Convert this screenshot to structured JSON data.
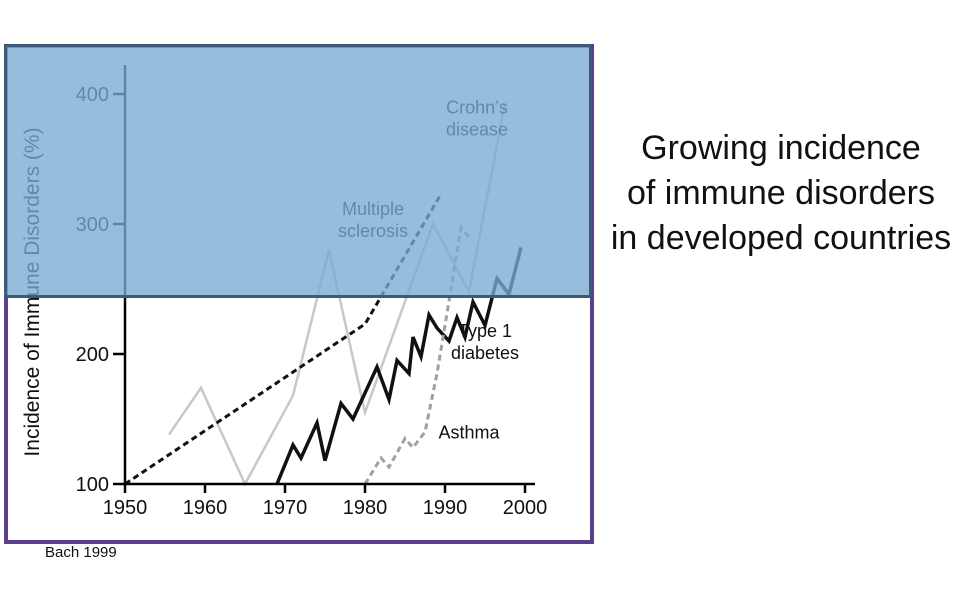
{
  "headline": {
    "line1": "Growing incidence",
    "line2": "of immune disorders",
    "line3": "in developed countries"
  },
  "citation": "Bach 1999",
  "colors": {
    "frame": "#5b3f8c",
    "overlay": "#7aaad2",
    "type1": "#111111",
    "ms": "#111111",
    "crohns": "#c8c8c8",
    "asthma": "#a0a0a0"
  },
  "chart_data": {
    "type": "line",
    "title": "",
    "xlabel": "",
    "ylabel": "Incidence of Immune Disorders (%)",
    "xlim": [
      1950,
      2000
    ],
    "ylim": [
      100,
      400
    ],
    "xticks": [
      1950,
      1960,
      1970,
      1980,
      1990,
      2000
    ],
    "yticks": [
      100,
      200,
      300,
      400
    ],
    "grid": false,
    "legend": "inline labels",
    "series": [
      {
        "name": "Crohn's disease",
        "label_lines": [
          "Crohn’s",
          "disease"
        ],
        "style": "solid-light",
        "x": [
          1955.5,
          1959.5,
          1965,
          1971,
          1975.5,
          1980,
          1988.5,
          1993,
          1997.5
        ],
        "y": [
          138,
          174,
          100,
          168,
          280,
          155,
          300,
          248,
          393
        ]
      },
      {
        "name": "Multiple sclerosis",
        "label_lines": [
          "Multiple",
          "sclerosis"
        ],
        "style": "dashed-black",
        "x": [
          1950,
          1980,
          1989.5
        ],
        "y": [
          100,
          223,
          323
        ]
      },
      {
        "name": "Type 1 diabetes",
        "label_lines": [
          "Type 1",
          "diabetes"
        ],
        "style": "solid-black",
        "x": [
          1969,
          1971,
          1972,
          1974,
          1975,
          1977,
          1978.5,
          1980,
          1981.5,
          1983,
          1984,
          1985.5,
          1986,
          1987,
          1988,
          1989,
          1990.5,
          1991.5,
          1992.5,
          1993.5,
          1995,
          1996.5,
          1998,
          1999.5
        ],
        "y": [
          100,
          130,
          120,
          147,
          118,
          162,
          150,
          170,
          190,
          165,
          195,
          185,
          213,
          198,
          230,
          220,
          210,
          228,
          213,
          240,
          222,
          258,
          246,
          282
        ]
      },
      {
        "name": "Asthma",
        "label_lines": [
          "Asthma"
        ],
        "style": "dashed-gray",
        "x": [
          1980,
          1982,
          1983,
          1985,
          1986,
          1987.5,
          1989,
          1990,
          1992,
          1993
        ],
        "y": [
          100,
          120,
          113,
          135,
          128,
          140,
          185,
          222,
          297,
          290
        ]
      }
    ]
  }
}
